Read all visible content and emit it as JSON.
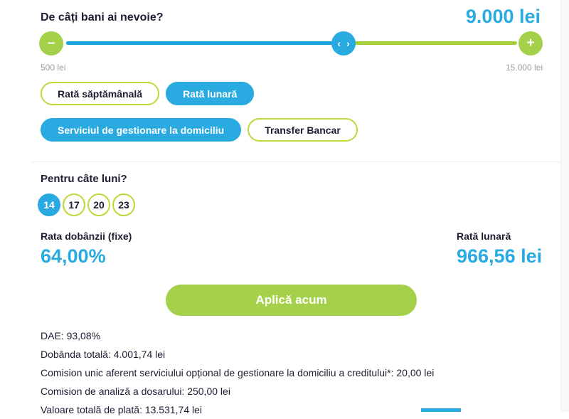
{
  "theme": {
    "accent_blue": "#29aae1",
    "track_blue": "#1ba3dd",
    "green_fill": "#a5d04a",
    "green_track": "#a6ce39",
    "green_border": "#bdd838",
    "text_dark": "#1d1d33",
    "text_gray": "#9e9e9e",
    "divider": "#ececec"
  },
  "loan_amount": {
    "question": "De câți bani ai nevoie?",
    "value": "9.000 lei",
    "min_label": "500 lei",
    "max_label": "15.000 lei",
    "minus_icon": "–",
    "plus_icon": "+",
    "handle_icon": "‹ ›"
  },
  "rate_type_options": [
    {
      "label": "Rată săptămânală",
      "selected": false
    },
    {
      "label": "Rată lunară",
      "selected": true
    }
  ],
  "service_options": [
    {
      "label": "Serviciul de gestionare la domiciliu",
      "selected": true
    },
    {
      "label": "Transfer Bancar",
      "selected": false
    }
  ],
  "months": {
    "question": "Pentru câte luni?",
    "options": [
      {
        "label": "14",
        "selected": true
      },
      {
        "label": "17",
        "selected": false
      },
      {
        "label": "20",
        "selected": false
      },
      {
        "label": "23",
        "selected": false
      }
    ]
  },
  "summary": {
    "interest_label": "Rata dobânzii (fixe)",
    "interest_value": "64,00%",
    "monthly_label": "Rată lunară",
    "monthly_value": "966,56 lei"
  },
  "apply_button_label": "Aplică acum",
  "details": [
    "DAE: 93,08%",
    "Dobânda totală: 4.001,74 lei",
    "Comision unic aferent serviciului opțional de gestionare la domiciliu a creditului*: 20,00 lei",
    "Comision de analiză a dosarului: 250,00 lei",
    "Valoare totală de plată: 13.531,74 lei"
  ]
}
